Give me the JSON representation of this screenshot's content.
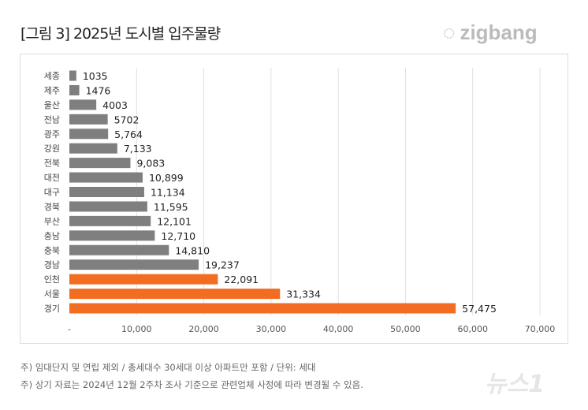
{
  "header": {
    "title": "[그림 3] 2025년 도시별 입주물량",
    "logo": "zigbang"
  },
  "notes": [
    "주) 임대단지 및 연립 제외 / 총세대수 30세대 이상 아파트만 포함 / 단위: 세대",
    "주) 상기 자료는 2024년 12월 2주차 조사 기준으로 관련업체 사정에 따라 변경될 수 있음."
  ],
  "watermark": "뉴스1",
  "chart_data": {
    "type": "bar",
    "orientation": "horizontal",
    "categories": [
      "세종",
      "제주",
      "울산",
      "전남",
      "광주",
      "강원",
      "전북",
      "대전",
      "대구",
      "경북",
      "부산",
      "충남",
      "충북",
      "경남",
      "인천",
      "서울",
      "경기"
    ],
    "values": [
      1035,
      1476,
      4003,
      5702,
      5764,
      7133,
      9083,
      10899,
      11134,
      11595,
      12101,
      12710,
      14810,
      19237,
      22091,
      31334,
      57475
    ],
    "value_labels": [
      "1035",
      "1476",
      "4003",
      "5702",
      "5,764",
      "7,133",
      "9,083",
      "10,899",
      "11,134",
      "11,595",
      "12,101",
      "12,710",
      "14,810",
      "19,237",
      "22,091",
      "31,334",
      "57,475"
    ],
    "highlight": [
      "인천",
      "서울",
      "경기"
    ],
    "colors": {
      "default": "#7f7f7f",
      "highlight": "#f26d21"
    },
    "xlim": [
      0,
      70000
    ],
    "xticks": [
      0,
      10000,
      20000,
      30000,
      40000,
      50000,
      60000,
      70000
    ],
    "xtick_labels": [
      "-",
      "10,000",
      "20,000",
      "30,000",
      "40,000",
      "50,000",
      "60,000",
      "70,000"
    ],
    "grid": true
  }
}
